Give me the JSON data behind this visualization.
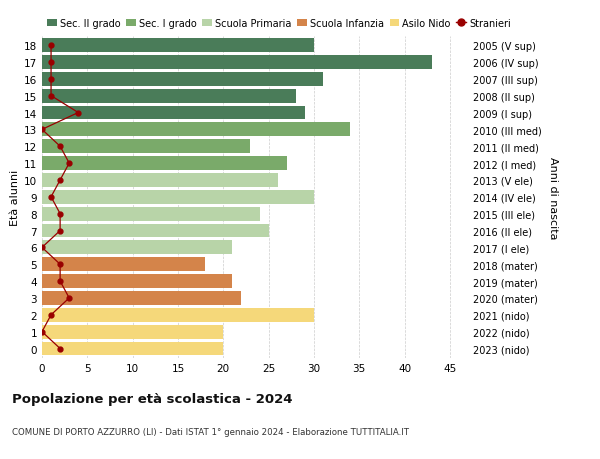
{
  "ages": [
    18,
    17,
    16,
    15,
    14,
    13,
    12,
    11,
    10,
    9,
    8,
    7,
    6,
    5,
    4,
    3,
    2,
    1,
    0
  ],
  "right_labels": [
    "2005 (V sup)",
    "2006 (IV sup)",
    "2007 (III sup)",
    "2008 (II sup)",
    "2009 (I sup)",
    "2010 (III med)",
    "2011 (II med)",
    "2012 (I med)",
    "2013 (V ele)",
    "2014 (IV ele)",
    "2015 (III ele)",
    "2016 (II ele)",
    "2017 (I ele)",
    "2018 (mater)",
    "2019 (mater)",
    "2020 (mater)",
    "2021 (nido)",
    "2022 (nido)",
    "2023 (nido)"
  ],
  "bar_values": [
    30,
    43,
    31,
    28,
    29,
    34,
    23,
    27,
    26,
    30,
    24,
    25,
    21,
    18,
    21,
    22,
    30,
    20,
    20
  ],
  "bar_colors": [
    "#4a7c59",
    "#4a7c59",
    "#4a7c59",
    "#4a7c59",
    "#4a7c59",
    "#7aaa6a",
    "#7aaa6a",
    "#7aaa6a",
    "#b8d4a8",
    "#b8d4a8",
    "#b8d4a8",
    "#b8d4a8",
    "#b8d4a8",
    "#d4844a",
    "#d4844a",
    "#d4844a",
    "#f5d87a",
    "#f5d87a",
    "#f5d87a"
  ],
  "stranieri_values": [
    1,
    1,
    1,
    1,
    4,
    0,
    2,
    3,
    2,
    1,
    2,
    2,
    0,
    2,
    2,
    3,
    1,
    0,
    2
  ],
  "stranieri_color": "#990000",
  "legend_items": [
    {
      "label": "Sec. II grado",
      "color": "#4a7c59"
    },
    {
      "label": "Sec. I grado",
      "color": "#7aaa6a"
    },
    {
      "label": "Scuola Primaria",
      "color": "#b8d4a8"
    },
    {
      "label": "Scuola Infanzia",
      "color": "#d4844a"
    },
    {
      "label": "Asilo Nido",
      "color": "#f5d87a"
    },
    {
      "label": "Stranieri",
      "color": "#990000"
    }
  ],
  "ylabel_left": "Età alunni",
  "ylabel_right": "Anni di nascita",
  "xlim": [
    0,
    47
  ],
  "xticks": [
    0,
    5,
    10,
    15,
    20,
    25,
    30,
    35,
    40,
    45
  ],
  "title": "Popolazione per età scolastica - 2024",
  "subtitle": "COMUNE DI PORTO AZZURRO (LI) - Dati ISTAT 1° gennaio 2024 - Elaborazione TUTTITALIA.IT",
  "background_color": "#ffffff",
  "grid_color": "#cccccc"
}
